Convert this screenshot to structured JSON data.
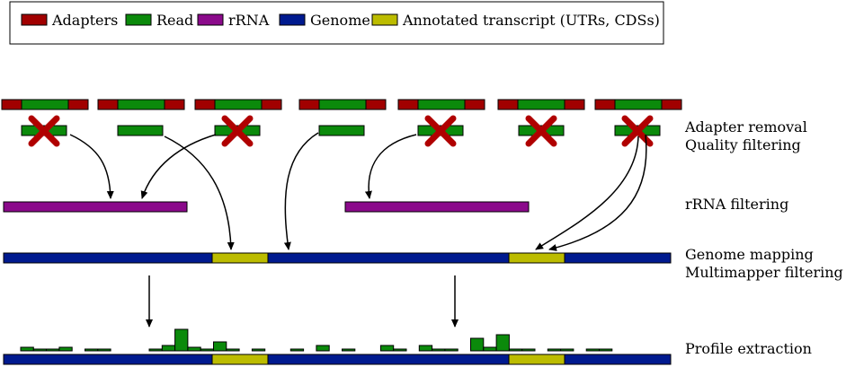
{
  "colors": {
    "adapter": "#a10000",
    "read": "#0b8a0b",
    "rrna": "#8b0a8b",
    "genome": "#001a8f",
    "transcript": "#bcbc00",
    "cross": "#b00000",
    "outline": "#000000"
  },
  "legend": {
    "items": [
      {
        "key": "adapter",
        "label": "Adapters"
      },
      {
        "key": "read",
        "label": "Read"
      },
      {
        "key": "rrna",
        "label": "rRNA"
      },
      {
        "key": "genome",
        "label": "Genome"
      },
      {
        "key": "transcript",
        "label": "Annotated transcript (UTRs, CDSs)"
      }
    ]
  },
  "steps": {
    "adapter_removal": "Adapter removal",
    "quality_filtering": "Quality filtering",
    "rrna_filtering": "rRNA filtering",
    "genome_mapping": "Genome mapping",
    "multimapper_filtering": "Multimapper filtering",
    "profile_extraction": "Profile extraction"
  },
  "reads": [
    {
      "index": 1,
      "filtered": true
    },
    {
      "index": 2,
      "filtered": false
    },
    {
      "index": 3,
      "filtered": true
    },
    {
      "index": 4,
      "filtered": false
    },
    {
      "index": 5,
      "filtered": true
    },
    {
      "index": 6,
      "filtered": true
    },
    {
      "index": 7,
      "filtered": true
    }
  ],
  "profile_heights": [
    4,
    2,
    2,
    4,
    0,
    2,
    2,
    0,
    0,
    0,
    2,
    6,
    24,
    4,
    2,
    10,
    2,
    0,
    2,
    0,
    0,
    2,
    0,
    6,
    0,
    2,
    0,
    0,
    6,
    2,
    0,
    6,
    2,
    2,
    0,
    14,
    4,
    18,
    2,
    2,
    0,
    2,
    2,
    0,
    2,
    2
  ]
}
